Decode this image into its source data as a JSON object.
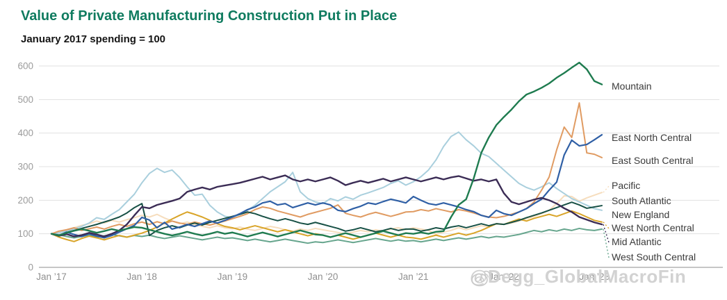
{
  "header": {
    "title": "Value of Private Manufacturing Construction Put in Place",
    "subtitle": "January 2017 spending = 100"
  },
  "watermark": {
    "text": "@Degg_GlobalMacroFin",
    "icon": "weibo-icon"
  },
  "colors": {
    "title_green": "#0f7b5f",
    "grid": "#e1e1e1",
    "axis_line": "#8c8c8c",
    "tick_text": "#9b9b9b",
    "label_text": "#3a3a3a",
    "watermark_gray": "#d2d2d2"
  },
  "chart_data": {
    "type": "line",
    "title": "Value of Private Manufacturing Construction Put in Place",
    "subtitle": "January 2017 spending = 100",
    "x_unit": "month",
    "x_start": "Jan 2017",
    "x_end": "Feb 2023",
    "x_tick_labels": [
      "Jan ’17",
      "Jan ’18",
      "Jan ’19",
      "Jan ’20",
      "Jan ’21",
      "Jan ’22",
      "Jan ’23"
    ],
    "y_ticks": [
      0,
      100,
      200,
      300,
      400,
      500,
      600
    ],
    "ylim": [
      0,
      600
    ],
    "grid": true,
    "legend_position": "right-of-line-ends",
    "series": [
      {
        "name": "Pacific",
        "color": "#f6ddbd",
        "width": 2,
        "label_y": 268,
        "values": [
          100,
          105,
          112,
          118,
          125,
          130,
          138,
          132,
          140,
          135,
          142,
          148,
          155,
          150,
          158,
          147,
          138,
          130,
          135,
          128,
          122,
          118,
          124,
          118,
          115,
          120,
          114,
          110,
          116,
          122,
          118,
          112,
          108,
          114,
          110,
          116,
          112,
          108,
          104,
          100,
          105,
          110,
          106,
          112,
          108,
          114,
          118,
          112,
          118,
          114,
          110,
          99,
          105,
          110,
          118,
          112,
          118,
          124,
          120,
          130,
          128,
          132,
          138,
          145,
          152,
          160,
          170,
          190,
          213,
          211,
          197,
          207,
          215,
          223
        ]
      },
      {
        "name": "New England",
        "color": "#a9cfdd",
        "width": 2,
        "label_y": 310,
        "values": [
          100,
          103,
          108,
          115,
          122,
          132,
          148,
          143,
          158,
          172,
          195,
          218,
          252,
          280,
          295,
          283,
          290,
          268,
          240,
          215,
          218,
          185,
          165,
          152,
          148,
          158,
          170,
          185,
          205,
          225,
          240,
          255,
          283,
          225,
          205,
          195,
          190,
          205,
          198,
          210,
          203,
          215,
          222,
          230,
          238,
          250,
          258,
          245,
          255,
          270,
          290,
          320,
          360,
          390,
          403,
          380,
          362,
          340,
          330,
          310,
          290,
          270,
          250,
          238,
          230,
          240,
          252,
          235,
          220,
          205,
          195,
          185,
          175,
          170
        ]
      },
      {
        "name": "West South Central",
        "color": "#66a58d",
        "width": 2,
        "label_y": 371,
        "values": [
          100,
          97,
          92,
          88,
          92,
          96,
          90,
          94,
          98,
          94,
          90,
          95,
          92,
          96,
          90,
          86,
          90,
          94,
          90,
          86,
          82,
          86,
          90,
          86,
          88,
          84,
          80,
          84,
          80,
          76,
          80,
          84,
          80,
          76,
          72,
          76,
          74,
          78,
          82,
          78,
          74,
          78,
          82,
          86,
          82,
          78,
          82,
          78,
          80,
          76,
          80,
          84,
          80,
          84,
          88,
          84,
          88,
          92,
          88,
          92,
          90,
          94,
          98,
          104,
          110,
          106,
          112,
          108,
          114,
          110,
          116,
          112,
          110,
          114
        ]
      },
      {
        "name": "West North Central",
        "color": "#d9a428",
        "width": 2,
        "label_y": 329,
        "values": [
          100,
          90,
          83,
          77,
          86,
          93,
          88,
          82,
          89,
          95,
          90,
          96,
          102,
          110,
          120,
          132,
          144,
          155,
          165,
          158,
          150,
          140,
          130,
          122,
          118,
          112,
          118,
          124,
          118,
          112,
          106,
          112,
          106,
          100,
          94,
          100,
          96,
          90,
          96,
          90,
          84,
          90,
          96,
          102,
          96,
          90,
          96,
          90,
          88,
          84,
          90,
          96,
          90,
          96,
          102,
          96,
          102,
          110,
          120,
          130,
          128,
          136,
          144,
          138,
          146,
          152,
          158,
          152,
          160,
          168,
          160,
          150,
          140,
          135
        ]
      },
      {
        "name": "East South Central",
        "color": "#e09b62",
        "width": 2,
        "label_y": 232,
        "values": [
          100,
          108,
          112,
          118,
          110,
          115,
          120,
          114,
          122,
          128,
          122,
          130,
          135,
          128,
          136,
          130,
          138,
          132,
          128,
          135,
          130,
          126,
          132,
          138,
          145,
          152,
          160,
          172,
          180,
          176,
          168,
          162,
          156,
          150,
          158,
          164,
          170,
          176,
          186,
          161,
          155,
          150,
          158,
          164,
          158,
          152,
          158,
          165,
          166,
          172,
          168,
          175,
          170,
          165,
          172,
          168,
          162,
          155,
          150,
          148,
          152,
          158,
          165,
          175,
          195,
          230,
          269,
          350,
          418,
          387,
          490,
          341,
          337,
          327
        ]
      },
      {
        "name": "South Atlantic",
        "color": "#175045",
        "width": 2,
        "label_y": 290,
        "values": [
          100,
          96,
          104,
          110,
          116,
          122,
          128,
          135,
          142,
          150,
          162,
          178,
          190,
          95,
          110,
          118,
          124,
          118,
          126,
          132,
          126,
          134,
          140,
          146,
          152,
          158,
          165,
          160,
          152,
          145,
          139,
          145,
          139,
          132,
          128,
          134,
          128,
          122,
          116,
          108,
          112,
          118,
          112,
          106,
          110,
          116,
          110,
          114,
          114,
          108,
          112,
          118,
          114,
          120,
          124,
          118,
          124,
          130,
          124,
          130,
          128,
          134,
          140,
          148,
          155,
          162,
          170,
          178,
          186,
          194,
          186,
          176,
          180,
          184
        ]
      },
      {
        "name": "East North Central",
        "color": "#2f5fa5",
        "width": 2.2,
        "label_y": 199,
        "values": [
          100,
          95,
          105,
          98,
          92,
          100,
          93,
          88,
          95,
          105,
          115,
          125,
          149,
          141,
          118,
          134,
          114,
          120,
          128,
          122,
          130,
          138,
          132,
          140,
          150,
          160,
          172,
          180,
          192,
          197,
          186,
          190,
          178,
          185,
          192,
          186,
          192,
          186,
          170,
          166,
          175,
          182,
          192,
          188,
          196,
          203,
          198,
          192,
          211,
          200,
          190,
          186,
          192,
          186,
          180,
          172,
          166,
          155,
          149,
          170,
          160,
          155,
          165,
          175,
          190,
          203,
          230,
          254,
          335,
          379,
          362,
          366,
          380,
          395
        ]
      },
      {
        "name": "Mid Atlantic",
        "color": "#3b2c55",
        "width": 2.4,
        "label_y": 349,
        "values": [
          100,
          94,
          99,
          92,
          96,
          103,
          98,
          92,
          100,
          110,
          128,
          155,
          180,
          176,
          186,
          192,
          198,
          205,
          225,
          232,
          238,
          232,
          240,
          244,
          248,
          252,
          258,
          264,
          270,
          262,
          268,
          274,
          262,
          256,
          262,
          256,
          262,
          268,
          258,
          245,
          252,
          258,
          252,
          258,
          264,
          256,
          262,
          268,
          262,
          256,
          262,
          268,
          262,
          268,
          272,
          265,
          258,
          262,
          256,
          262,
          221,
          195,
          188,
          195,
          202,
          207,
          200,
          190,
          176,
          165,
          150,
          142,
          134,
          128
        ]
      },
      {
        "name": "Mountain",
        "color": "#1e7b4f",
        "width": 2.4,
        "label_y": 125,
        "values": [
          100,
          95,
          103,
          109,
          114,
          109,
          103,
          108,
          114,
          109,
          115,
          120,
          118,
          112,
          106,
          100,
          95,
          100,
          106,
          100,
          95,
          100,
          106,
          100,
          104,
          98,
          92,
          98,
          104,
          98,
          92,
          98,
          104,
          110,
          104,
          98,
          96,
          90,
          96,
          102,
          96,
          90,
          96,
          102,
          108,
          102,
          96,
          102,
          100,
          104,
          100,
          106,
          108,
          150,
          186,
          203,
          265,
          341,
          387,
          424,
          448,
          470,
          495,
          515,
          524,
          535,
          548,
          565,
          579,
          595,
          610,
          590,
          555,
          545
        ]
      }
    ]
  }
}
